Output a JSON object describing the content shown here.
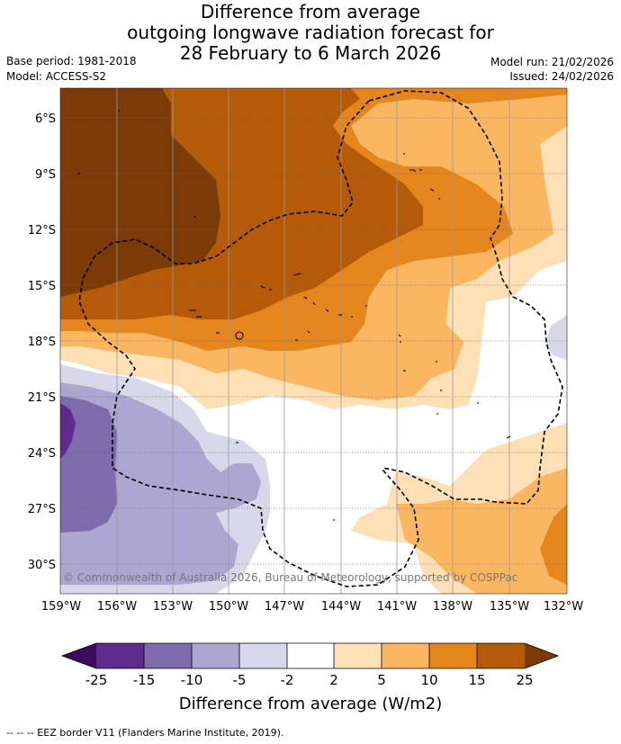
{
  "header": {
    "title_lines": [
      "Difference from average",
      "outgoing longwave radiation forecast for",
      "28 February to 6 March 2026"
    ],
    "base_period": "Base period: 1981-2018",
    "model": "Model: ACCESS-S2",
    "model_run": "Model run: 21/02/2026",
    "issued": "Issued: 24/02/2026"
  },
  "map": {
    "lat_labels": [
      "6°S",
      "9°S",
      "12°S",
      "15°S",
      "18°S",
      "21°S",
      "24°S",
      "27°S",
      "30°S"
    ],
    "lon_labels": [
      "159°W",
      "156°W",
      "153°W",
      "150°W",
      "147°W",
      "144°W",
      "141°W",
      "138°W",
      "135°W",
      "132°W"
    ],
    "copyright": "© Commonwealth of Australia 2026, Bureau of Meteorology, supported by COSPPac"
  },
  "colorbar": {
    "ticks": [
      "-25",
      "-15",
      "-10",
      "-5",
      "-2",
      "2",
      "5",
      "10",
      "15",
      "25"
    ],
    "label": "Difference from average (W/m2)",
    "colors": {
      "under": "#3b0c5c",
      "c1": "#5e2a8c",
      "c2": "#7e6bab",
      "c3": "#aca6d1",
      "c4": "#d8d8ea",
      "c5": "#ffffff",
      "c6": "#fde0b6",
      "c7": "#fbb661",
      "c8": "#e5851d",
      "c9": "#b55a09",
      "over": "#7b3a07"
    }
  },
  "footer": "--  --  -- EEZ border V11 (Flanders Marine Institute, 2019)."
}
